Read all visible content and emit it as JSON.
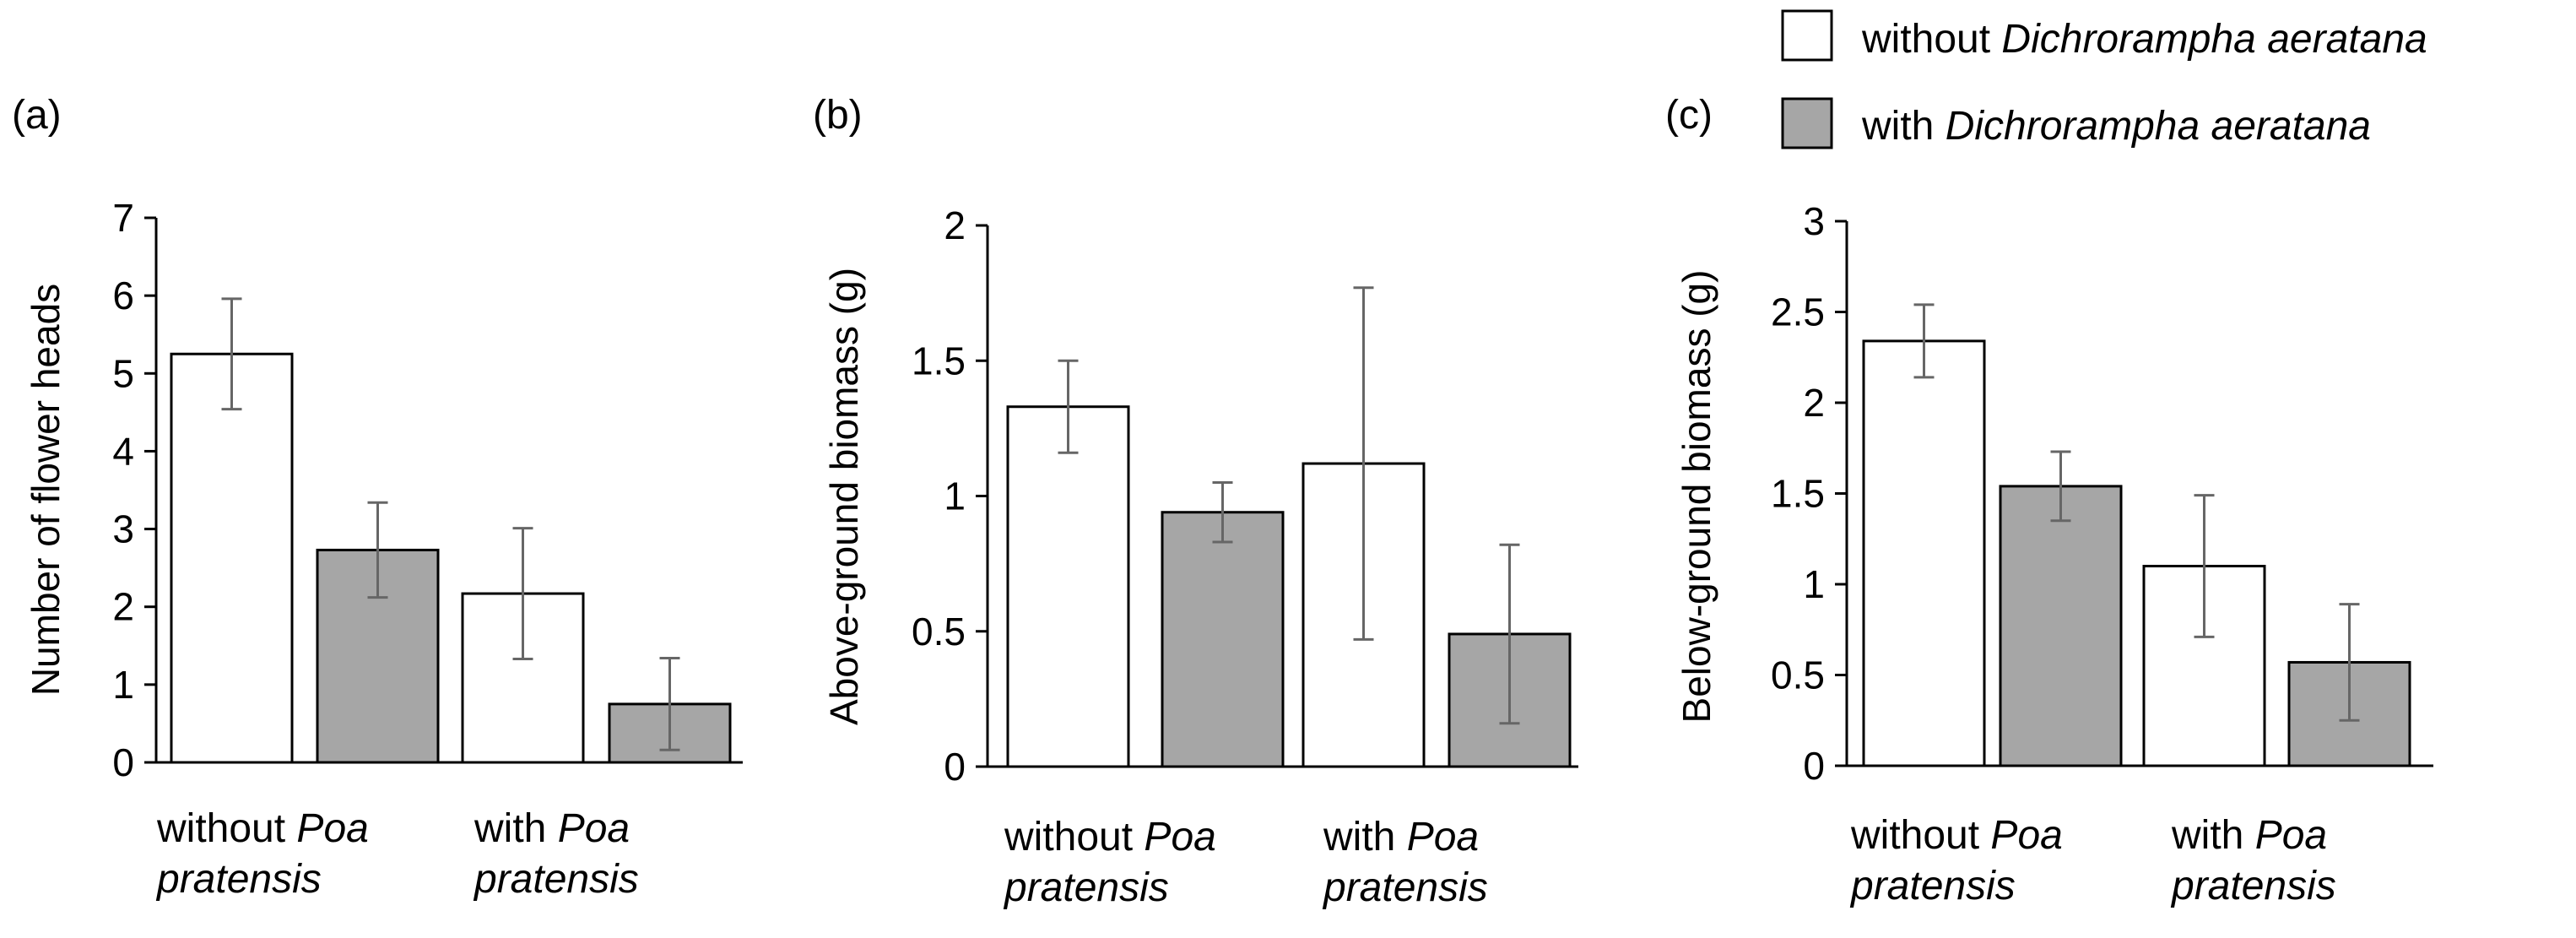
{
  "legend": {
    "entries": [
      {
        "prefix": "without ",
        "species": "Dichrorampha aeratana",
        "color": "#ffffff"
      },
      {
        "prefix": "with ",
        "species": "Dichrorampha aeratana",
        "color": "#a6a6a6"
      }
    ]
  },
  "x_groups": [
    {
      "line1_prefix": "without ",
      "line1_italic": "Poa",
      "line2_italic": "pratensis"
    },
    {
      "line1_prefix": "with ",
      "line1_italic": "Poa",
      "line2_italic": "pratensis"
    }
  ],
  "chart_data": [
    {
      "type": "bar",
      "panel": "(a)",
      "ylabel": "Number of flower heads",
      "ylim": [
        0,
        7
      ],
      "yticks": [
        "0",
        "1",
        "2",
        "3",
        "4",
        "5",
        "6",
        "7"
      ],
      "categories": [
        "without Poa pratensis",
        "with Poa pratensis"
      ],
      "series": [
        {
          "name": "without Dichrorampha aeratana",
          "values": [
            5.25,
            2.17
          ],
          "errors": [
            0.71,
            0.84
          ]
        },
        {
          "name": "with Dichrorampha aeratana",
          "values": [
            2.73,
            0.75
          ],
          "errors": [
            0.61,
            0.59
          ]
        }
      ]
    },
    {
      "type": "bar",
      "panel": "(b)",
      "ylabel": "Above-ground biomass (g)",
      "ylim": [
        0,
        2
      ],
      "yticks": [
        "0",
        "0.5",
        "1",
        "1.5",
        "2"
      ],
      "categories": [
        "without Poa pratensis",
        "with Poa pratensis"
      ],
      "series": [
        {
          "name": "without Dichrorampha aeratana",
          "values": [
            1.33,
            1.12
          ],
          "errors": [
            0.17,
            0.65
          ]
        },
        {
          "name": "with Dichrorampha aeratana",
          "values": [
            0.94,
            0.49
          ],
          "errors": [
            0.11,
            0.33
          ]
        }
      ]
    },
    {
      "type": "bar",
      "panel": "(c)",
      "ylabel": "Below-ground biomass (g)",
      "ylim": [
        0,
        3
      ],
      "yticks": [
        "0",
        "0.5",
        "1",
        "1.5",
        "2",
        "2.5",
        "3"
      ],
      "categories": [
        "without Poa pratensis",
        "with Poa pratensis"
      ],
      "series": [
        {
          "name": "without Dichrorampha aeratana",
          "values": [
            2.34,
            1.1
          ],
          "errors": [
            0.2,
            0.39
          ]
        },
        {
          "name": "with Dichrorampha aeratana",
          "values": [
            1.54,
            0.57
          ],
          "errors": [
            0.19,
            0.32
          ]
        }
      ]
    }
  ]
}
